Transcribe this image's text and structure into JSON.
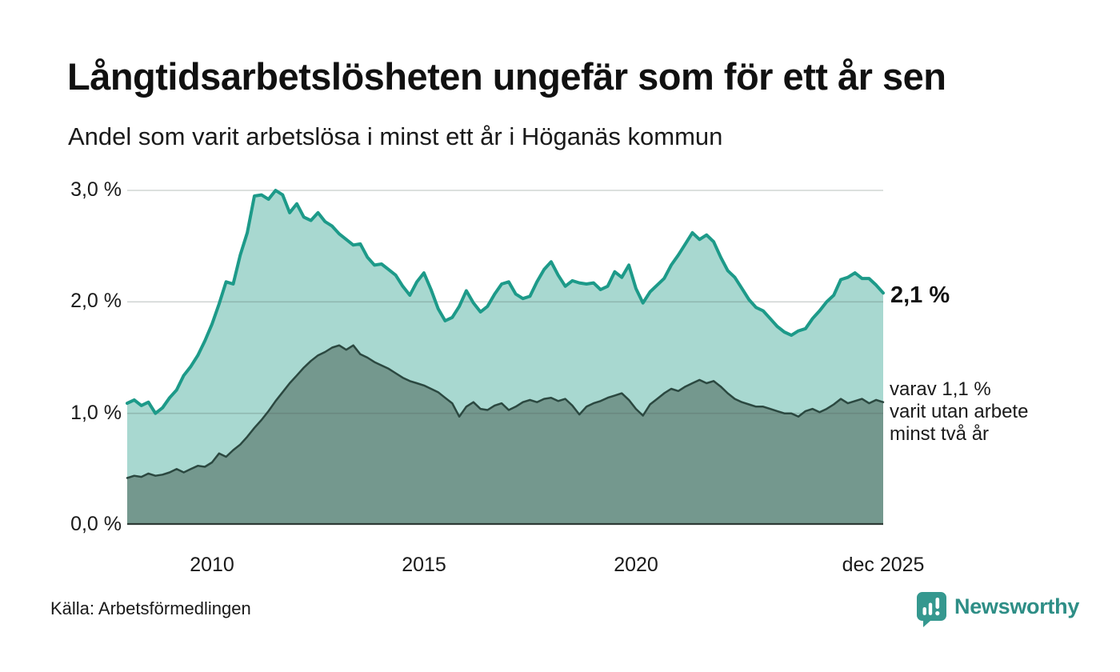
{
  "header": {
    "title": "Långtidsarbetslösheten ungefär som för ett år sen",
    "subtitle": "Andel som varit arbetslösa i minst ett år i Höganäs kommun"
  },
  "chart_data": {
    "type": "area",
    "title": "Långtidsarbetslösheten ungefär som för ett år sen",
    "subtitle": "Andel som varit arbetslösa i minst ett år i Höganäs kommun",
    "unit": "%",
    "x_start": 2008.0,
    "x_end": 2025.83,
    "ylim": [
      0,
      3
    ],
    "grid": "horizontal",
    "y_ticks": [
      {
        "label": "0,0 %",
        "v": 0
      },
      {
        "label": "1,0 %",
        "v": 1
      },
      {
        "label": "2,0 %",
        "v": 2
      },
      {
        "label": "3,0 %",
        "v": 3
      }
    ],
    "x_ticks": [
      {
        "label": "2010",
        "t": 2010
      },
      {
        "label": "2015",
        "t": 2015
      },
      {
        "label": "2020",
        "t": 2020
      },
      {
        "label": "dec 2025",
        "t": 2025.83
      }
    ],
    "series": [
      {
        "name": "Andel som varit arbetslösa i minst ett år",
        "line_color": "#1d9a89",
        "fill_color": "#a8d8d0",
        "line_width": 4,
        "latest_value": 2.1,
        "values": [
          1.09,
          1.12,
          1.07,
          1.1,
          1.0,
          1.05,
          1.14,
          1.21,
          1.34,
          1.42,
          1.52,
          1.65,
          1.8,
          1.98,
          2.18,
          2.16,
          2.42,
          2.62,
          2.95,
          2.96,
          2.92,
          3.0,
          2.96,
          2.8,
          2.88,
          2.76,
          2.73,
          2.8,
          2.72,
          2.68,
          2.61,
          2.56,
          2.51,
          2.52,
          2.4,
          2.33,
          2.34,
          2.29,
          2.24,
          2.14,
          2.06,
          2.18,
          2.26,
          2.11,
          1.94,
          1.83,
          1.86,
          1.96,
          2.1,
          1.99,
          1.91,
          1.96,
          2.07,
          2.16,
          2.18,
          2.07,
          2.03,
          2.05,
          2.18,
          2.29,
          2.36,
          2.24,
          2.14,
          2.19,
          2.17,
          2.16,
          2.17,
          2.11,
          2.14,
          2.27,
          2.22,
          2.33,
          2.12,
          1.99,
          2.09,
          2.15,
          2.21,
          2.33,
          2.42,
          2.52,
          2.62,
          2.56,
          2.6,
          2.54,
          2.4,
          2.28,
          2.22,
          2.12,
          2.02,
          1.95,
          1.92,
          1.85,
          1.78,
          1.73,
          1.7,
          1.74,
          1.76,
          1.85,
          1.92,
          2.0,
          2.06,
          2.2,
          2.22,
          2.26,
          2.21,
          2.21,
          2.15,
          2.08
        ]
      },
      {
        "name": "varav utan arbete minst två år",
        "line_color": "#2b4840",
        "fill_color": "#74988e",
        "line_width": 2.5,
        "latest_value": 1.1,
        "values": [
          0.42,
          0.44,
          0.43,
          0.46,
          0.44,
          0.45,
          0.47,
          0.5,
          0.47,
          0.5,
          0.53,
          0.52,
          0.56,
          0.64,
          0.61,
          0.67,
          0.72,
          0.79,
          0.87,
          0.94,
          1.02,
          1.11,
          1.19,
          1.27,
          1.34,
          1.41,
          1.47,
          1.52,
          1.55,
          1.59,
          1.61,
          1.57,
          1.61,
          1.53,
          1.5,
          1.46,
          1.43,
          1.4,
          1.36,
          1.32,
          1.29,
          1.27,
          1.25,
          1.22,
          1.19,
          1.14,
          1.09,
          0.97,
          1.06,
          1.1,
          1.04,
          1.03,
          1.07,
          1.09,
          1.03,
          1.06,
          1.1,
          1.12,
          1.1,
          1.13,
          1.14,
          1.11,
          1.13,
          1.07,
          0.99,
          1.06,
          1.09,
          1.11,
          1.14,
          1.16,
          1.18,
          1.12,
          1.04,
          0.98,
          1.08,
          1.13,
          1.18,
          1.22,
          1.2,
          1.24,
          1.27,
          1.3,
          1.27,
          1.29,
          1.24,
          1.18,
          1.13,
          1.1,
          1.08,
          1.06,
          1.06,
          1.04,
          1.02,
          1.0,
          1.0,
          0.97,
          1.02,
          1.04,
          1.01,
          1.04,
          1.08,
          1.13,
          1.09,
          1.11,
          1.13,
          1.09,
          1.12,
          1.1
        ]
      }
    ],
    "annotations": {
      "total_end": "2,1 %",
      "sub_lines": [
        "varav 1,1 %",
        "varit utan arbete",
        "minst två år"
      ]
    },
    "colors": {
      "gridline": "#d9d9d9",
      "baseline": "#2e3b36",
      "background": "#ffffff"
    }
  },
  "footer": {
    "source": "Källa: Arbetsförmedlingen",
    "brand": "Newsworthy",
    "brand_color": "#2e8e86",
    "logo_icon": "speech-bubble-bar-chart-exclamation"
  }
}
